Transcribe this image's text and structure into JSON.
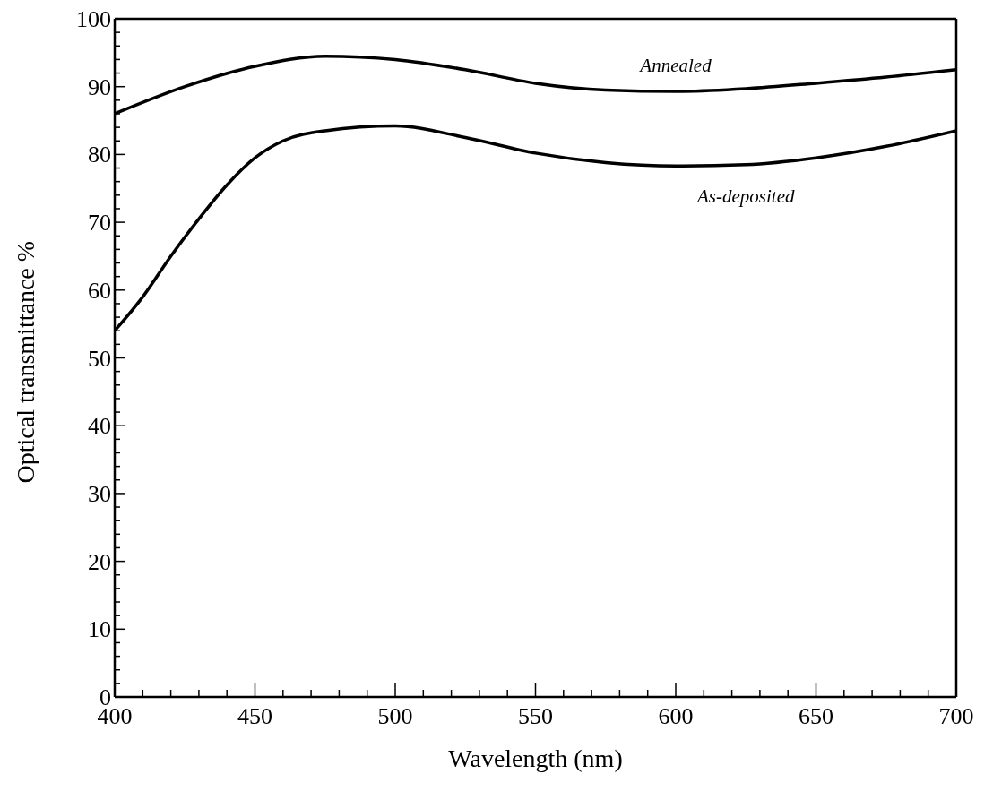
{
  "chart_data": {
    "type": "line",
    "xlabel": "Wavelength (nm)",
    "ylabel": "Optical transmittance %",
    "xlim": [
      400,
      700
    ],
    "ylim": [
      0,
      100
    ],
    "xticks": [
      400,
      {
        "value": 410,
        "label": null
      },
      {
        "value": 420,
        "label": null
      },
      {
        "value": 430,
        "label": null
      },
      {
        "value": 440,
        "label": null
      },
      450,
      {
        "value": 460,
        "label": null
      },
      {
        "value": 470,
        "label": null
      },
      {
        "value": 480,
        "label": null
      },
      {
        "value": 490,
        "label": null
      },
      500,
      {
        "value": 510,
        "label": null
      },
      {
        "value": 520,
        "label": null
      },
      {
        "value": 530,
        "label": null
      },
      {
        "value": 540,
        "label": null
      },
      550,
      {
        "value": 560,
        "label": null
      },
      {
        "value": 570,
        "label": null
      },
      {
        "value": 580,
        "label": null
      },
      {
        "value": 590,
        "label": null
      },
      600,
      {
        "value": 610,
        "label": null
      },
      {
        "value": 620,
        "label": null
      },
      {
        "value": 630,
        "label": null
      },
      {
        "value": 640,
        "label": null
      },
      650,
      {
        "value": 660,
        "label": null
      },
      {
        "value": 670,
        "label": null
      },
      {
        "value": 680,
        "label": null
      },
      {
        "value": 690,
        "label": null
      },
      700
    ],
    "yticks": [
      0,
      {
        "value": 2,
        "label": null
      },
      {
        "value": 4,
        "label": null
      },
      {
        "value": 6,
        "label": null
      },
      {
        "value": 8,
        "label": null
      },
      10,
      {
        "value": 12,
        "label": null
      },
      {
        "value": 14,
        "label": null
      },
      {
        "value": 16,
        "label": null
      },
      {
        "value": 18,
        "label": null
      },
      20,
      {
        "value": 22,
        "label": null
      },
      {
        "value": 24,
        "label": null
      },
      {
        "value": 26,
        "label": null
      },
      {
        "value": 28,
        "label": null
      },
      30,
      {
        "value": 32,
        "label": null
      },
      {
        "value": 34,
        "label": null
      },
      {
        "value": 36,
        "label": null
      },
      {
        "value": 38,
        "label": null
      },
      40,
      {
        "value": 42,
        "label": null
      },
      {
        "value": 44,
        "label": null
      },
      {
        "value": 46,
        "label": null
      },
      {
        "value": 48,
        "label": null
      },
      50,
      {
        "value": 52,
        "label": null
      },
      {
        "value": 54,
        "label": null
      },
      {
        "value": 56,
        "label": null
      },
      {
        "value": 58,
        "label": null
      },
      60,
      {
        "value": 62,
        "label": null
      },
      {
        "value": 64,
        "label": null
      },
      {
        "value": 66,
        "label": null
      },
      {
        "value": 68,
        "label": null
      },
      70,
      {
        "value": 72,
        "label": null
      },
      {
        "value": 74,
        "label": null
      },
      {
        "value": 76,
        "label": null
      },
      {
        "value": 78,
        "label": null
      },
      80,
      {
        "value": 82,
        "label": null
      },
      {
        "value": 84,
        "label": null
      },
      {
        "value": 86,
        "label": null
      },
      {
        "value": 88,
        "label": null
      },
      90,
      {
        "value": 92,
        "label": null
      },
      {
        "value": 94,
        "label": null
      },
      {
        "value": 96,
        "label": null
      },
      {
        "value": 98,
        "label": null
      },
      100
    ],
    "grid": false,
    "legend": false,
    "marker": "none",
    "line_style": "solid",
    "series": [
      {
        "name": "Annealed",
        "color": "#000000",
        "x": [
          400,
          425,
          450,
          475,
          500,
          525,
          550,
          575,
          600,
          625,
          650,
          675,
          700
        ],
        "values": [
          86,
          90,
          93,
          94.5,
          94,
          92.5,
          90.5,
          89.5,
          89.3,
          89.7,
          90.5,
          91.4,
          92.5
        ]
      },
      {
        "name": "As-deposited",
        "color": "#000000",
        "x": [
          400,
          410,
          420,
          430,
          440,
          450,
          460,
          475,
          500,
          525,
          550,
          575,
          600,
          625,
          650,
          675,
          700
        ],
        "values": [
          54,
          59,
          65,
          70.5,
          75.5,
          79.5,
          82,
          83.5,
          84.2,
          82.5,
          80.2,
          78.8,
          78.3,
          78.5,
          79.5,
          81.2,
          83.5
        ]
      }
    ]
  }
}
